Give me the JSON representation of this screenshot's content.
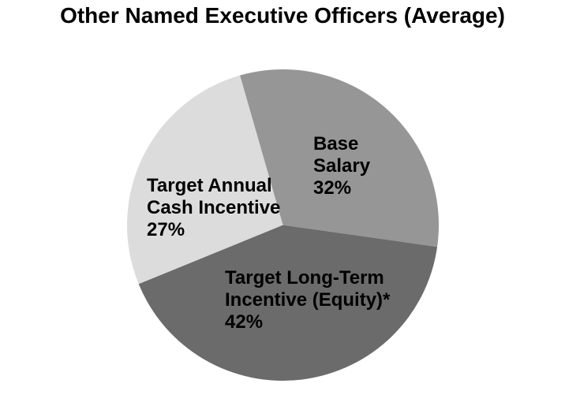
{
  "chart_data": {
    "type": "pie",
    "title": "Other Named Executive Officers (Average)",
    "legend": "none",
    "labels_position": "inside",
    "label_color": "#000000",
    "background_color": "#ffffff",
    "direction": "clockwise",
    "start_angle_deg": 344,
    "slices": [
      {
        "id": "base-salary",
        "label": "Base Salary",
        "label_lines": [
          "Base",
          "Salary"
        ],
        "value": 32,
        "pct_label": "32%",
        "color": "#969696"
      },
      {
        "id": "target-long-term-incentive-equity",
        "label": "Target Long-Term Incentive (Equity)*",
        "label_lines": [
          "Target Long-Term",
          "Incentive (Equity)*"
        ],
        "value": 42,
        "pct_label": "42%",
        "color": "#6b6b6b"
      },
      {
        "id": "target-annual-cash-incentive",
        "label": "Target Annual Cash Incentive",
        "label_lines": [
          "Target Annual",
          "Cash Incentive"
        ],
        "value": 27,
        "pct_label": "27%",
        "color": "#dcdcdc"
      }
    ]
  }
}
